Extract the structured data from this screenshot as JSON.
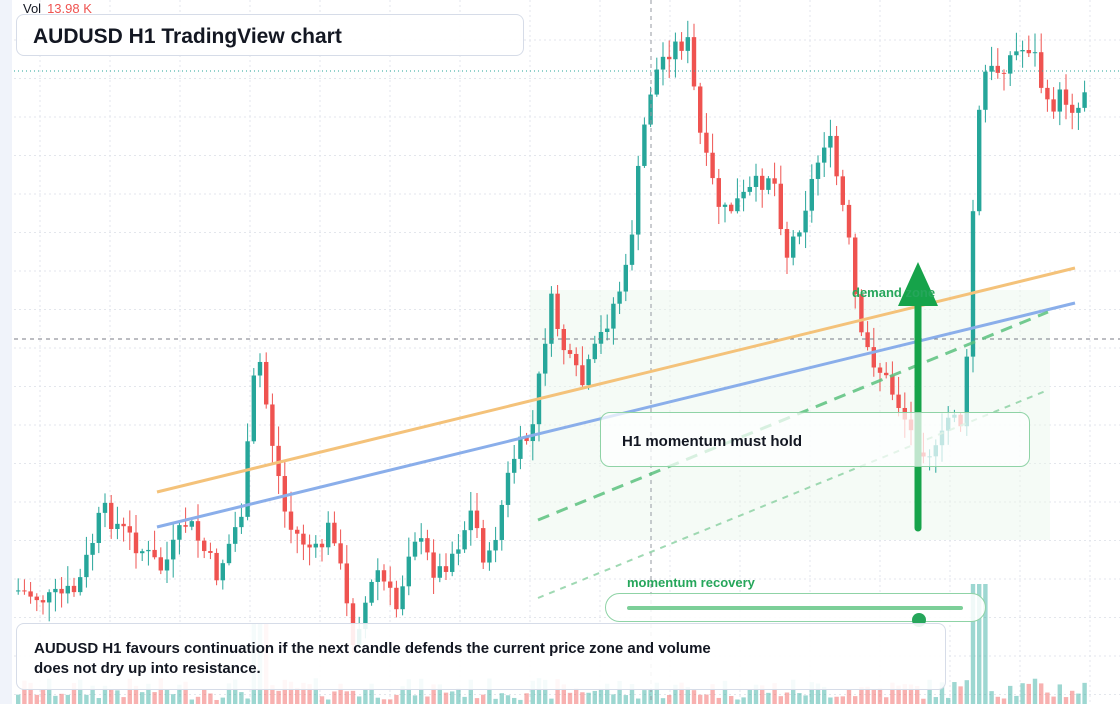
{
  "header": {
    "volume_label": "Vol",
    "volume_value": "13.98 K",
    "title": "AUDUSD H1 TradingView chart"
  },
  "annotations": {
    "zone_label": "demand zone",
    "hold_label": "H1 momentum must hold",
    "recovery_label": "momentum recovery",
    "recovery_level": 0.87,
    "summary": "AUDUSD H1 favours continuation if the next candle defends the current price zone and volume does not dry up into resistance."
  },
  "colors": {
    "up": "#26a69a",
    "down": "#ef5350",
    "orange_trendline": "#f4c27a",
    "blue_trendline": "#8aaeea",
    "accent_green": "#26a65b",
    "grid": "#e3e6ec"
  },
  "icons": [
    "up-arrow-icon"
  ]
}
